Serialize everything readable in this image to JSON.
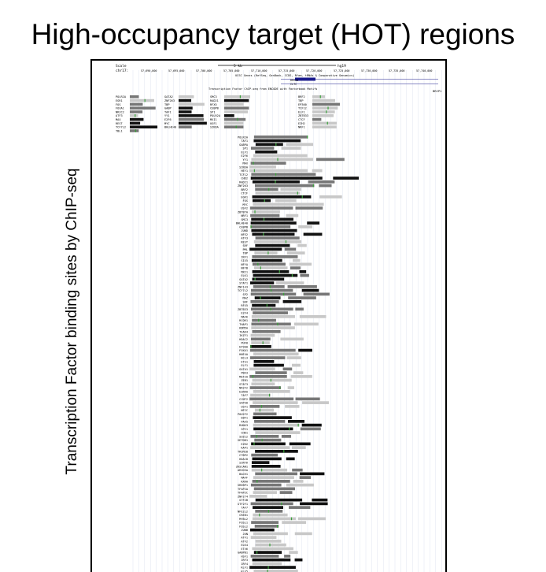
{
  "title": "High-occupancy target (HOT) regions",
  "y_axis_label": "Transcription Factor binding sites by ChIP-seq",
  "browser": {
    "header": {
      "scale_label": "Scale",
      "chrom_label": "chr17:",
      "scale_bar": "5 kb",
      "assembly": "hg19",
      "coordinates": [
        "57,690,000",
        "57,695,000",
        "57,700,000",
        "57,705,000",
        "57,710,000",
        "57,715,000",
        "57,720,000",
        "57,725,000",
        "57,730,000",
        "57,735,000",
        "57,740,000"
      ],
      "ucsc_caption": "UCSC Genes (RefSeq, GenBank, CCDS, Rfam, tRNAs & Comparative Genomics)",
      "gene_names": [
        "DHX40",
        "CLTC"
      ],
      "tfbs_caption": "Transcription Factor ChIP-seq from ENCODE with Factorbook Motifs",
      "gene_end_label": "BRIP1"
    },
    "colors": {
      "frame": "#000000",
      "dark": "#111111",
      "mid": "#777777",
      "light": "#c8c8c8",
      "motif": "#3aa23a",
      "gene": "#1a1a8c"
    },
    "top_rows": [
      [
        "POLR2A",
        "GATA2",
        "SMC3",
        "BRF2"
      ],
      [
        "EGR1",
        "ZNF263",
        "RAD21",
        "TBP"
      ],
      [
        "FOS",
        "TBP",
        "RFX5",
        "EP300"
      ],
      [
        "FOXA1",
        "GABP",
        "CEBPB",
        "TCF12"
      ],
      [
        "NR2C2",
        "TAF1",
        "SP1",
        "ELF1"
      ],
      [
        "ATF3",
        "YY1",
        "POLR2A",
        "ZBTB33"
      ],
      [
        "MAX",
        "E2F6",
        "MXI1",
        "CTCF"
      ],
      [
        "REST",
        "MYC",
        "USF1",
        "EZH2"
      ],
      [
        "TCF7L2",
        "BHLHE40",
        "SIN3A",
        "NRF1"
      ],
      [
        "TBL1"
      ]
    ],
    "stack_rows": [
      "POLR2A",
      "TAF1",
      "GABPA",
      "SP1",
      "ELF1",
      "E2F6",
      "YY1",
      "MAX",
      "SIN3A",
      "HEY1",
      "TCF12",
      "CHD2",
      "RAD21",
      "ZNF263",
      "BRF2",
      "CTCF",
      "EGR1",
      "FOS",
      "MYC",
      "USF2",
      "ZBTB7A",
      "NRF1",
      "SMC3",
      "BHLHE40",
      "CEBPB",
      "JUND",
      "NFE2",
      "ATF3",
      "REST",
      "SRF",
      "PML",
      "TBP",
      "IRF1",
      "SIX5",
      "NFYA",
      "NFYB",
      "MXI1",
      "ELK1",
      "GATA2",
      "STAT1",
      "ZNF143",
      "TCF7L2",
      "SP2",
      "MAZ",
      "SRF",
      "RFX5",
      "ZBTB33",
      "E2F4",
      "MAFK",
      "RCOR1",
      "THAP1",
      "KDM5A",
      "TEAD4",
      "IKZF1",
      "HDAC2",
      "PHF8",
      "EP300",
      "FOXA1",
      "HNF4A",
      "BCL3",
      "ETS1",
      "ELF1",
      "GATA1",
      "PBX3",
      "MEF2A",
      "ZEB1",
      "STAT3",
      "NR2F2",
      "ESRRA",
      "TAF7",
      "CCNT2",
      "SAP30",
      "USF1",
      "NFIC",
      "POU2F2",
      "EBF1",
      "PAX5",
      "RUNX3",
      "SPI1",
      "CHD1",
      "SUZ12",
      "SETDB1",
      "EZH2",
      "KAP1",
      "TRIM28",
      "CTBP2",
      "HDAC8",
      "SIRT6",
      "ZKSCAN1",
      "ARID3A",
      "BACH1",
      "MAFF",
      "RXRA",
      "SREBP1",
      "TFAP2A",
      "TFAP2C",
      "ZNF274",
      "GTF2B",
      "GTF2F1",
      "TAF7",
      "NFE2L2",
      "CREB1",
      "MYBL2",
      "FOSL1",
      "FOSL2",
      "JUNB",
      "JUN",
      "ATF1",
      "ATF2",
      "ELK4",
      "ETV6",
      "GABPB1",
      "HSF1",
      "IRF3",
      "IRF4",
      "KLF1",
      "KLF5",
      "MEF2C",
      "NFATC1",
      "NFKB1"
    ]
  }
}
